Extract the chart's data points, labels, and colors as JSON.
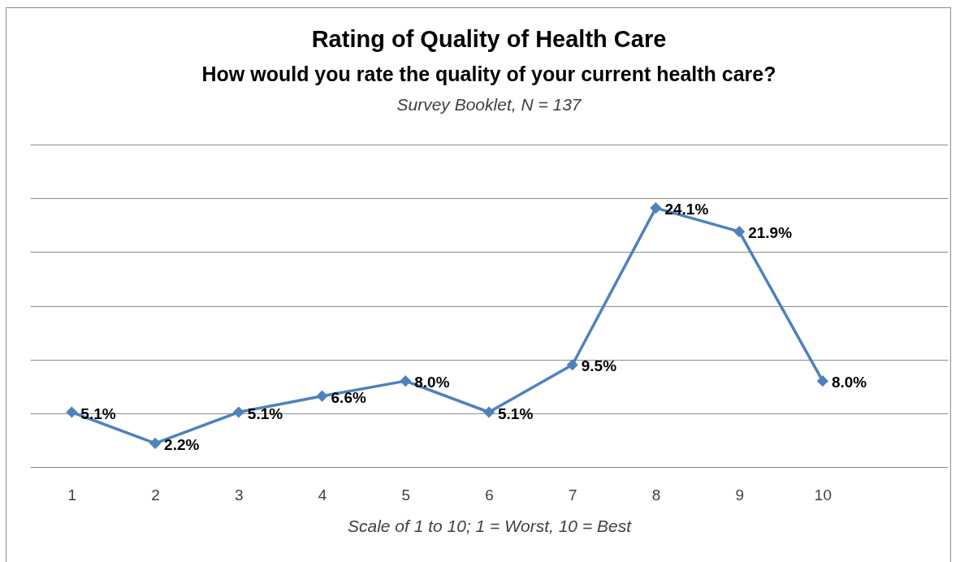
{
  "chart_data": {
    "type": "line",
    "title": "Rating of Quality of Health Care",
    "subtitle": "How would you rate the quality of your current health care?",
    "xlabel": "Scale of 1 to 10; 1 = Worst, 10 = Best",
    "annotations": [
      "Survey Booklet, N = 137"
    ],
    "categories": [
      "1",
      "2",
      "3",
      "4",
      "5",
      "6",
      "7",
      "8",
      "9",
      "10",
      null
    ],
    "series": [
      {
        "color": "#4f81bd",
        "values": [
          5.1,
          2.2,
          5.1,
          6.6,
          8.0,
          5.1,
          9.5,
          24.1,
          21.9,
          8.0,
          null
        ],
        "value_labels": [
          "5.1%",
          "2.2%",
          "5.1%",
          "6.6%",
          "8.0%",
          "5.1%",
          "9.5%",
          "24.1%",
          "21.9%",
          "8.0%",
          null
        ]
      }
    ],
    "ylim": [
      0,
      30
    ],
    "yticks": [
      0,
      5,
      10,
      15,
      20,
      25,
      30
    ],
    "grid": "y",
    "tick_labels": "x",
    "marker": "diamond",
    "line_style": "solid"
  }
}
